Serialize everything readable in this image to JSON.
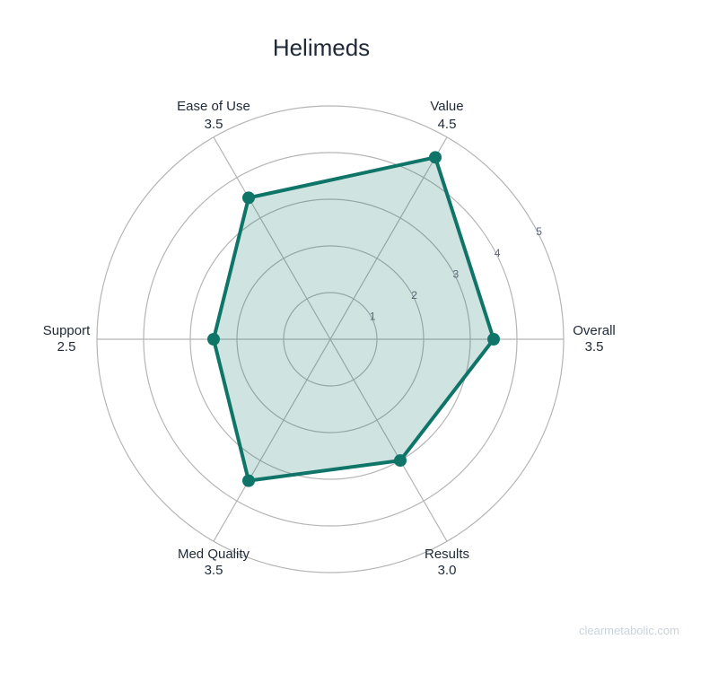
{
  "chart_data": {
    "type": "radar",
    "title": "Helimeds",
    "categories": [
      "Overall",
      "Value",
      "Ease of Use",
      "Support",
      "Med Quality",
      "Results"
    ],
    "values": [
      3.5,
      4.5,
      3.5,
      2.5,
      3.5,
      3.0
    ],
    "value_labels": [
      "3.5",
      "4.5",
      "3.5",
      "2.5",
      "3.5",
      "3.0"
    ],
    "rlim": [
      0,
      5
    ],
    "r_ticks": [
      "1",
      "2",
      "3",
      "4",
      "5"
    ],
    "grid": true,
    "colors": {
      "line": "#0f7568",
      "fill": "#0f7568",
      "grid": "#b5b5b5"
    }
  },
  "watermark": "clearmetabolic.com"
}
